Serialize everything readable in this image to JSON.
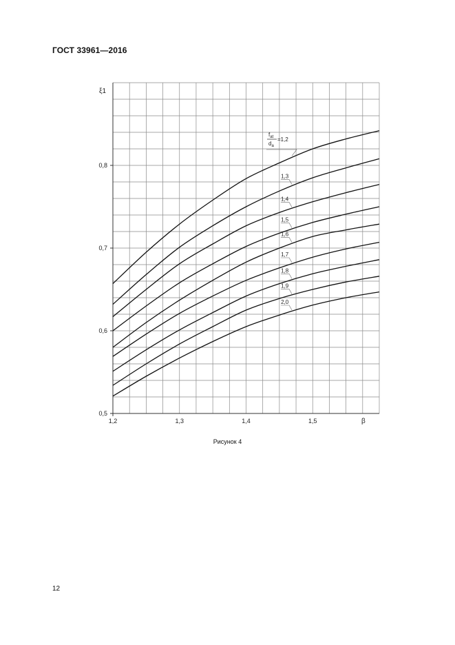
{
  "document": {
    "header": "ГОСТ 33961—2016",
    "caption": "Рисунок 4",
    "page_number": "12"
  },
  "chart_data": {
    "type": "line",
    "title": "",
    "xlabel": "β",
    "ylabel": "ξ1",
    "xlim": [
      1.2,
      1.6
    ],
    "ylim": [
      0.5,
      0.9
    ],
    "x_ticks": [
      {
        "value": 1.2,
        "label": "1,2"
      },
      {
        "value": 1.3,
        "label": "1,3"
      },
      {
        "value": 1.4,
        "label": "1,4"
      },
      {
        "value": 1.5,
        "label": "1,5"
      }
    ],
    "y_ticks": [
      {
        "value": 0.5,
        "label": "0,5"
      },
      {
        "value": 0.6,
        "label": "0,6"
      },
      {
        "value": 0.7,
        "label": "0,7"
      },
      {
        "value": 0.8,
        "label": "0,8"
      }
    ],
    "grid": true,
    "grid_x_step": 0.025,
    "grid_y_step": 0.02,
    "parameter_label": {
      "numerator": "f",
      "numerator_sub": "at",
      "denominator": "d",
      "denominator_sub": "a",
      "suffix": "=1,2"
    },
    "x": [
      1.2,
      1.25,
      1.3,
      1.35,
      1.4,
      1.45,
      1.5,
      1.55,
      1.6
    ],
    "series": [
      {
        "name": "1,2",
        "values": [
          0.657,
          0.695,
          0.729,
          0.758,
          0.784,
          0.803,
          0.82,
          0.832,
          0.842
        ]
      },
      {
        "name": "1,3",
        "values": [
          0.632,
          0.668,
          0.701,
          0.727,
          0.75,
          0.769,
          0.785,
          0.797,
          0.808
        ]
      },
      {
        "name": "1,4",
        "values": [
          0.617,
          0.65,
          0.681,
          0.705,
          0.727,
          0.743,
          0.756,
          0.767,
          0.777
        ]
      },
      {
        "name": "1,5",
        "values": [
          0.6,
          0.63,
          0.658,
          0.681,
          0.702,
          0.718,
          0.731,
          0.741,
          0.75
        ]
      },
      {
        "name": "1,6",
        "values": [
          0.58,
          0.61,
          0.637,
          0.661,
          0.683,
          0.7,
          0.714,
          0.722,
          0.729
        ]
      },
      {
        "name": "1,7",
        "values": [
          0.569,
          0.596,
          0.621,
          0.642,
          0.661,
          0.676,
          0.689,
          0.699,
          0.707
        ]
      },
      {
        "name": "1,8",
        "values": [
          0.551,
          0.577,
          0.601,
          0.622,
          0.642,
          0.657,
          0.669,
          0.678,
          0.686
        ]
      },
      {
        "name": "1,9",
        "values": [
          0.534,
          0.56,
          0.584,
          0.605,
          0.625,
          0.639,
          0.65,
          0.659,
          0.666
        ]
      },
      {
        "name": "2,0",
        "values": [
          0.521,
          0.545,
          0.567,
          0.587,
          0.605,
          0.619,
          0.631,
          0.64,
          0.647
        ]
      }
    ]
  }
}
